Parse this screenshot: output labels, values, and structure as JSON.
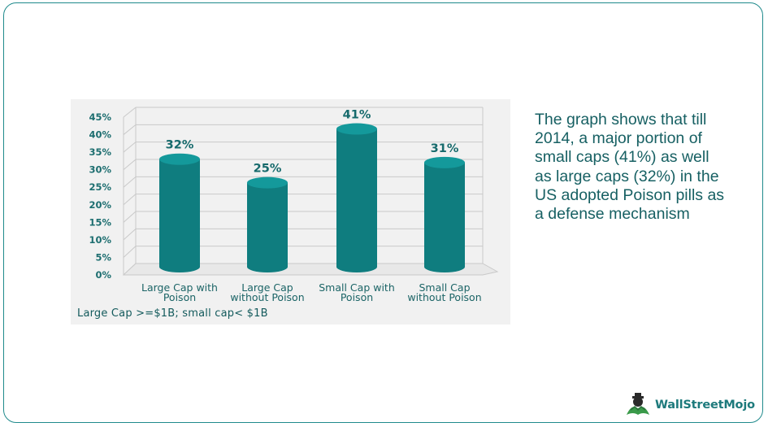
{
  "chart_data": {
    "type": "bar",
    "categories": [
      [
        "Large Cap with",
        "Poison"
      ],
      [
        "Large Cap",
        "without Poison"
      ],
      [
        "Small Cap with",
        "Poison"
      ],
      [
        "Small Cap",
        "without Poison"
      ]
    ],
    "values": [
      32,
      25,
      41,
      31
    ],
    "data_labels": [
      "32%",
      "25%",
      "41%",
      "31%"
    ],
    "y_ticks": [
      "0%",
      "5%",
      "10%",
      "15%",
      "20%",
      "25%",
      "30%",
      "35%",
      "40%",
      "45%"
    ],
    "ylim": [
      0,
      45
    ],
    "grid": true,
    "bar_color": "#0f7d7f"
  },
  "note": "Large Cap >=$1B; small cap< $1B",
  "description": "The graph shows that till 2014, a major portion of small caps (41%) as well as large caps (32%) in the US adopted Poison pills as a defense mechanism",
  "brand": {
    "name": "WallStreetMojo",
    "color": "#1d7a7c"
  }
}
